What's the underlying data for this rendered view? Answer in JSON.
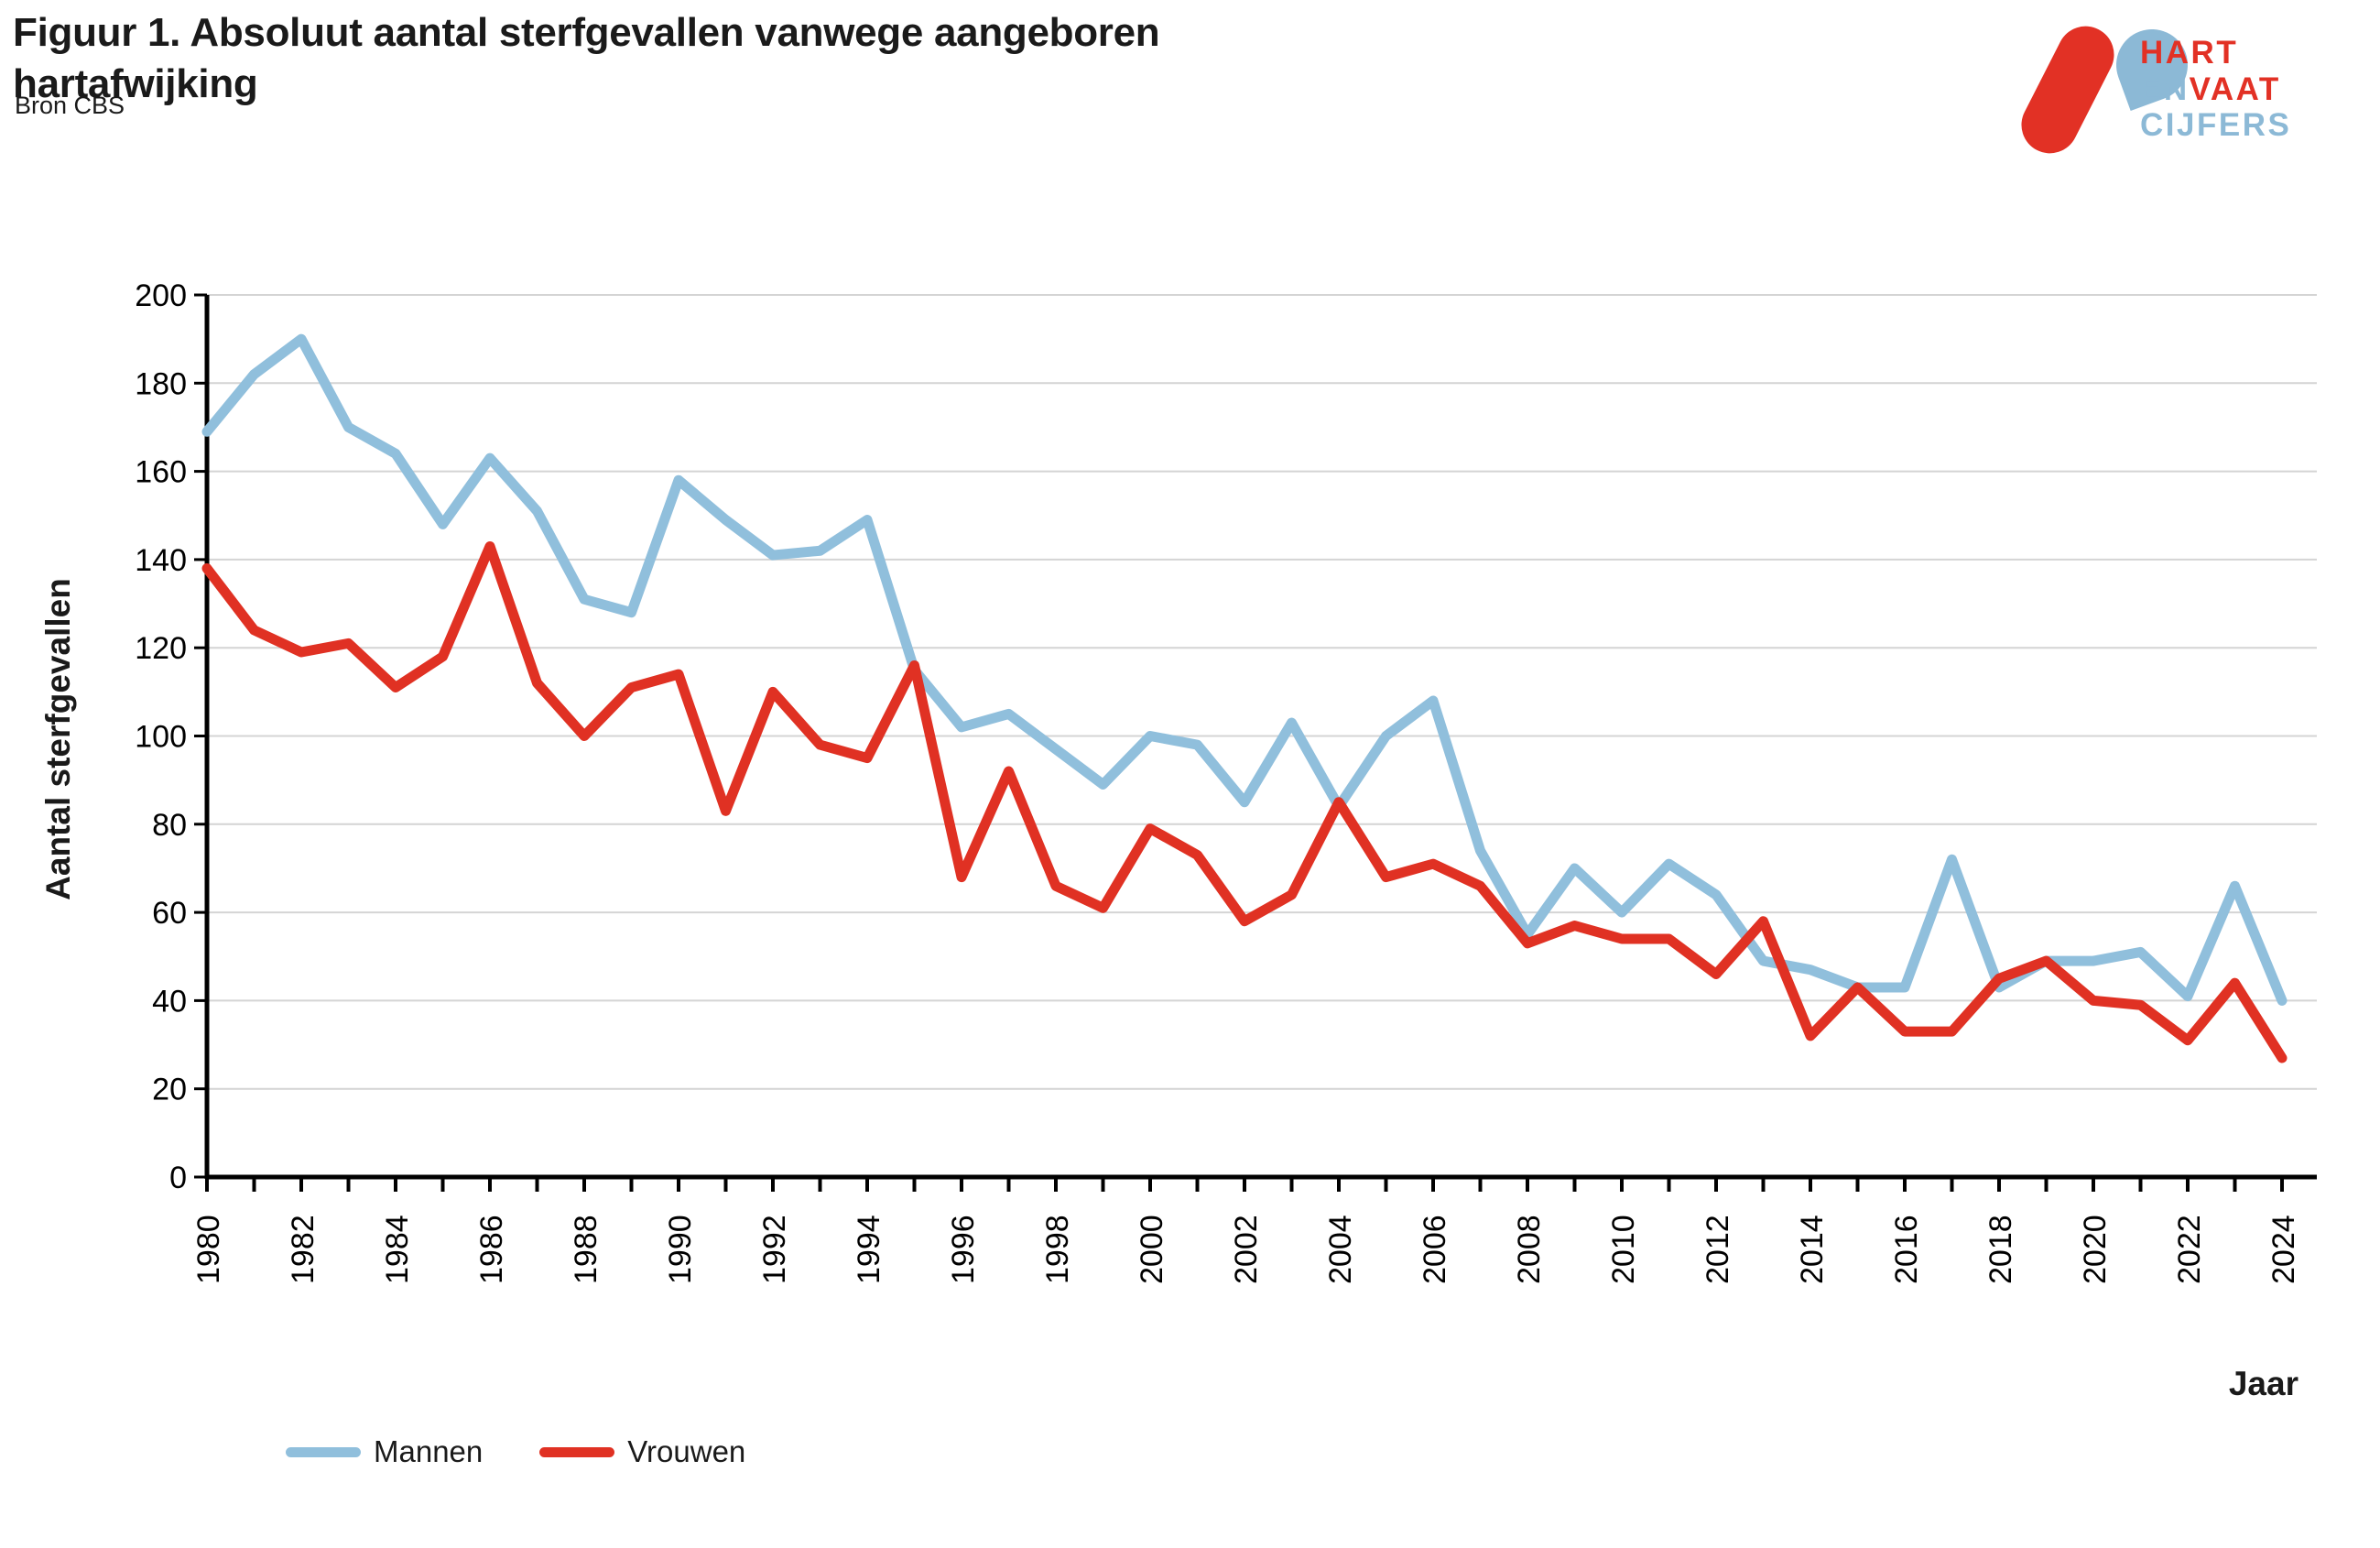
{
  "page": {
    "title": "Figuur 1. Absoluut aantal sterfgevallen vanwege aangeboren\nhartafwijking",
    "source": "Bron CBS"
  },
  "logo": {
    "hart": "HART",
    "en": "EN",
    "vaat": "VAAT",
    "cijfers": "CIJFERS"
  },
  "chart_data": {
    "type": "line",
    "title": "Figuur 1. Absoluut aantal sterfgevallen vanwege aangeboren hartafwijking",
    "xlabel": "Jaar",
    "ylabel": "Aantal sterfgevallen",
    "ylim": [
      0,
      200
    ],
    "ytick_step": 20,
    "grid": "horizontal",
    "legend_position": "bottom-left",
    "x": [
      1980,
      1981,
      1982,
      1983,
      1984,
      1985,
      1986,
      1987,
      1988,
      1989,
      1990,
      1991,
      1992,
      1993,
      1994,
      1995,
      1996,
      1997,
      1998,
      1999,
      2000,
      2001,
      2002,
      2003,
      2004,
      2005,
      2006,
      2007,
      2008,
      2009,
      2010,
      2011,
      2012,
      2013,
      2014,
      2015,
      2016,
      2017,
      2018,
      2019,
      2020,
      2021,
      2022,
      2023,
      2024
    ],
    "x_tick_labels": [
      "1980",
      "1982",
      "1984",
      "1986",
      "1988",
      "1990",
      "1992",
      "1994",
      "1996",
      "1998",
      "2000",
      "2002",
      "2004",
      "2006",
      "2008",
      "2010",
      "2012",
      "2014",
      "2016",
      "2018",
      "2020",
      "2022",
      "2024"
    ],
    "y_tick_labels": [
      "0",
      "20",
      "40",
      "60",
      "80",
      "100",
      "120",
      "140",
      "160",
      "180",
      "200"
    ],
    "series": [
      {
        "name": "Mannen",
        "color": "#90BFDC",
        "values": [
          169,
          182,
          190,
          170,
          164,
          148,
          163,
          151,
          131,
          128,
          158,
          149,
          141,
          142,
          149,
          115,
          102,
          105,
          97,
          89,
          100,
          98,
          85,
          103,
          84,
          100,
          108,
          74,
          55,
          70,
          60,
          71,
          64,
          49,
          47,
          43,
          43,
          72,
          43,
          49,
          49,
          51,
          41,
          66,
          40
        ]
      },
      {
        "name": "Vrouwen",
        "color": "#E03123",
        "values": [
          138,
          124,
          119,
          121,
          111,
          118,
          143,
          112,
          100,
          111,
          114,
          83,
          110,
          98,
          95,
          116,
          68,
          92,
          66,
          61,
          79,
          73,
          58,
          64,
          85,
          68,
          71,
          66,
          53,
          57,
          54,
          54,
          46,
          58,
          32,
          43,
          33,
          33,
          45,
          49,
          40,
          39,
          31,
          44,
          27
        ]
      }
    ]
  }
}
